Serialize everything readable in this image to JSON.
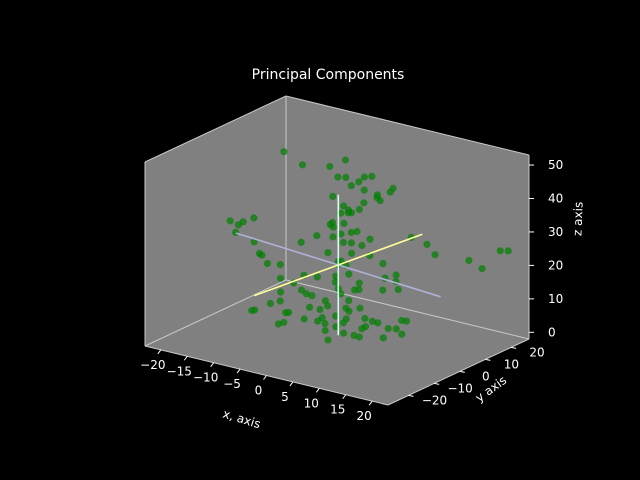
{
  "chart_data": {
    "type": "scatter",
    "projection": "3d",
    "title": "Principal Components",
    "xlabel": "x, axis",
    "ylabel": "y axis",
    "zlabel": "z axis",
    "xlim": [
      -23,
      23
    ],
    "ylim": [
      -28,
      27
    ],
    "zlim": [
      -2,
      53
    ],
    "xticks": [
      -20,
      -15,
      -10,
      -5,
      0,
      5,
      10,
      15,
      20
    ],
    "yticks": [
      -20,
      -10,
      0,
      10,
      20
    ],
    "zticks": [
      0,
      10,
      20,
      30,
      40,
      50
    ],
    "grid": false,
    "pane_color": "#808080",
    "background_color": "#000000",
    "points_color": "#008000",
    "points": [
      [
        -17,
        -5,
        26
      ],
      [
        -19,
        -3,
        28
      ],
      [
        -16,
        -6,
        29
      ],
      [
        -15,
        -2,
        30
      ],
      [
        -18,
        0,
        27
      ],
      [
        -14,
        -4,
        24
      ],
      [
        -12,
        -6,
        22
      ],
      [
        -13,
        -3,
        20
      ],
      [
        -11,
        -5,
        19
      ],
      [
        -10,
        -2,
        18
      ],
      [
        -9,
        -4,
        15
      ],
      [
        -8,
        -6,
        12
      ],
      [
        -7,
        -3,
        14
      ],
      [
        -6,
        -1,
        16
      ],
      [
        -5,
        -4,
        13
      ],
      [
        -4,
        -2,
        11
      ],
      [
        -3,
        -5,
        9
      ],
      [
        -6,
        -7,
        7
      ],
      [
        -2,
        -3,
        8
      ],
      [
        -1,
        -6,
        6
      ],
      [
        -20,
        20,
        40
      ],
      [
        -16,
        19,
        38
      ],
      [
        -5,
        7,
        46
      ],
      [
        -3,
        9,
        48
      ],
      [
        -1,
        5,
        45
      ],
      [
        1,
        3,
        44
      ],
      [
        2,
        6,
        42
      ],
      [
        0,
        8,
        43
      ],
      [
        3,
        4,
        47
      ],
      [
        4,
        7,
        41
      ],
      [
        -2,
        2,
        40
      ],
      [
        1,
        0,
        39
      ],
      [
        2,
        1,
        37
      ],
      [
        0,
        4,
        36
      ],
      [
        -1,
        3,
        35
      ],
      [
        3,
        2,
        38
      ],
      [
        5,
        6,
        40
      ],
      [
        6,
        9,
        43
      ],
      [
        2,
        9,
        45
      ],
      [
        -3,
        6,
        44
      ],
      [
        0,
        -2,
        33
      ],
      [
        1,
        -1,
        31
      ],
      [
        -1,
        0,
        29
      ],
      [
        2,
        1,
        28
      ],
      [
        0,
        2,
        27
      ],
      [
        1,
        3,
        30
      ],
      [
        -2,
        1,
        32
      ],
      [
        3,
        -1,
        26
      ],
      [
        -1,
        -2,
        25
      ],
      [
        2,
        -3,
        24
      ],
      [
        0,
        0,
        22
      ],
      [
        1,
        1,
        21
      ],
      [
        -1,
        2,
        20
      ],
      [
        2,
        0,
        19
      ],
      [
        0,
        -1,
        18
      ],
      [
        -3,
        -2,
        17
      ],
      [
        3,
        2,
        16
      ],
      [
        1,
        -2,
        15
      ],
      [
        -2,
        3,
        14
      ],
      [
        2,
        4,
        13
      ],
      [
        0,
        1,
        12
      ],
      [
        -1,
        -3,
        11
      ],
      [
        1,
        2,
        10
      ],
      [
        3,
        -2,
        9
      ],
      [
        -2,
        0,
        8
      ],
      [
        0,
        3,
        7
      ],
      [
        2,
        -1,
        6
      ],
      [
        -1,
        1,
        5
      ],
      [
        1,
        -3,
        4
      ],
      [
        0,
        2,
        3
      ],
      [
        -3,
        1,
        2
      ],
      [
        3,
        3,
        2
      ],
      [
        1,
        0,
        1
      ],
      [
        -2,
        -1,
        1
      ],
      [
        2,
        2,
        0
      ],
      [
        0,
        -4,
        0
      ],
      [
        4,
        0,
        1
      ],
      [
        -4,
        2,
        3
      ],
      [
        5,
        3,
        5
      ],
      [
        -5,
        -3,
        4
      ],
      [
        6,
        -2,
        8
      ],
      [
        7,
        1,
        6
      ],
      [
        8,
        3,
        4
      ],
      [
        9,
        -1,
        3
      ],
      [
        10,
        2,
        5
      ],
      [
        11,
        4,
        7
      ],
      [
        12,
        0,
        9
      ],
      [
        13,
        -2,
        6
      ],
      [
        6,
        5,
        14
      ],
      [
        8,
        6,
        17
      ],
      [
        9,
        4,
        20
      ],
      [
        7,
        3,
        23
      ],
      [
        5,
        2,
        25
      ],
      [
        4,
        1,
        28
      ],
      [
        6,
        0,
        31
      ],
      [
        5,
        -3,
        34
      ],
      [
        3,
        -4,
        36
      ],
      [
        8,
        12,
        28
      ],
      [
        10,
        14,
        26
      ],
      [
        12,
        13,
        24
      ],
      [
        16,
        18,
        22
      ],
      [
        18,
        19,
        20
      ],
      [
        20,
        22,
        25
      ],
      [
        21,
        23,
        25
      ],
      [
        -8,
        -10,
        10
      ],
      [
        -10,
        -12,
        8
      ],
      [
        -12,
        -9,
        6
      ],
      [
        -6,
        -11,
        5
      ],
      [
        -4,
        -13,
        7
      ],
      [
        -9,
        -2,
        4
      ],
      [
        -11,
        0,
        6
      ],
      [
        -7,
        2,
        9
      ],
      [
        4,
        10,
        15
      ],
      [
        6,
        11,
        12
      ],
      [
        -4,
        6,
        30
      ],
      [
        -2,
        8,
        33
      ],
      [
        0,
        10,
        36
      ],
      [
        2,
        11,
        38
      ],
      [
        4,
        12,
        40
      ],
      [
        -6,
        4,
        26
      ],
      [
        -8,
        2,
        24
      ],
      [
        6,
        -6,
        18
      ],
      [
        8,
        -8,
        14
      ],
      [
        10,
        -10,
        10
      ]
    ],
    "principal_axes": [
      {
        "color": "#b0b0d8",
        "from": [
          -15,
          -9,
          28
        ],
        "to": [
          15,
          9,
          14
        ]
      },
      {
        "color": "#ffff99",
        "from": [
          -13,
          -6,
          9
        ],
        "to": [
          13,
          6,
          33
        ]
      },
      {
        "color": "#ccffe6",
        "from": [
          0,
          0,
          0
        ],
        "to": [
          0,
          0,
          42
        ]
      }
    ]
  }
}
